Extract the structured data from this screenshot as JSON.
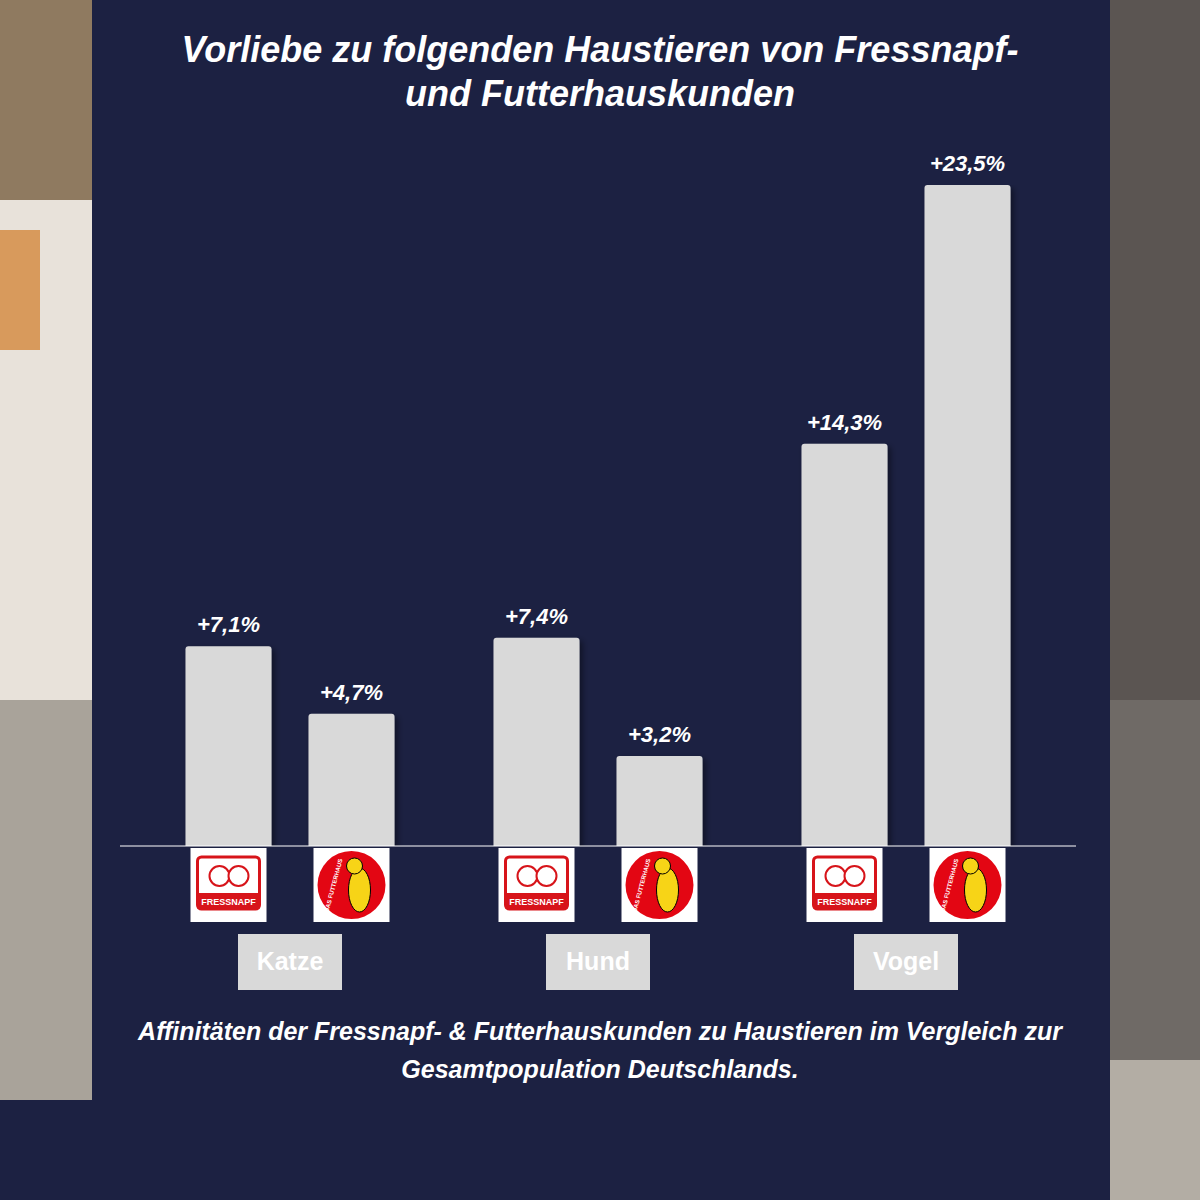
{
  "chart_data": {
    "type": "bar",
    "title": "Vorliebe zu folgenden Haustieren von Fressnapf- und Futterhauskunden",
    "subtitle": "Affinitäten der Fressnapf- & Futterhauskunden zu Haustieren im Vergleich zur Gesamtpopulation Deutschlands.",
    "categories": [
      "Katze",
      "Hund",
      "Vogel"
    ],
    "series": [
      {
        "name": "FRESSNAPF",
        "color": "#d9d9d9",
        "values": [
          7.1,
          7.4,
          14.3
        ],
        "value_labels": [
          "+7,1%",
          "+7,4%",
          "+14,3%"
        ]
      },
      {
        "name": "DAS FUTTERHAUS",
        "color": "#d9d9d9",
        "values": [
          4.7,
          3.2,
          23.5
        ],
        "value_labels": [
          "+4,7%",
          "+3,2%",
          "+23,5%"
        ]
      }
    ],
    "ylim": [
      0,
      23.5
    ],
    "data_labels": true,
    "tick_labels": false
  }
}
